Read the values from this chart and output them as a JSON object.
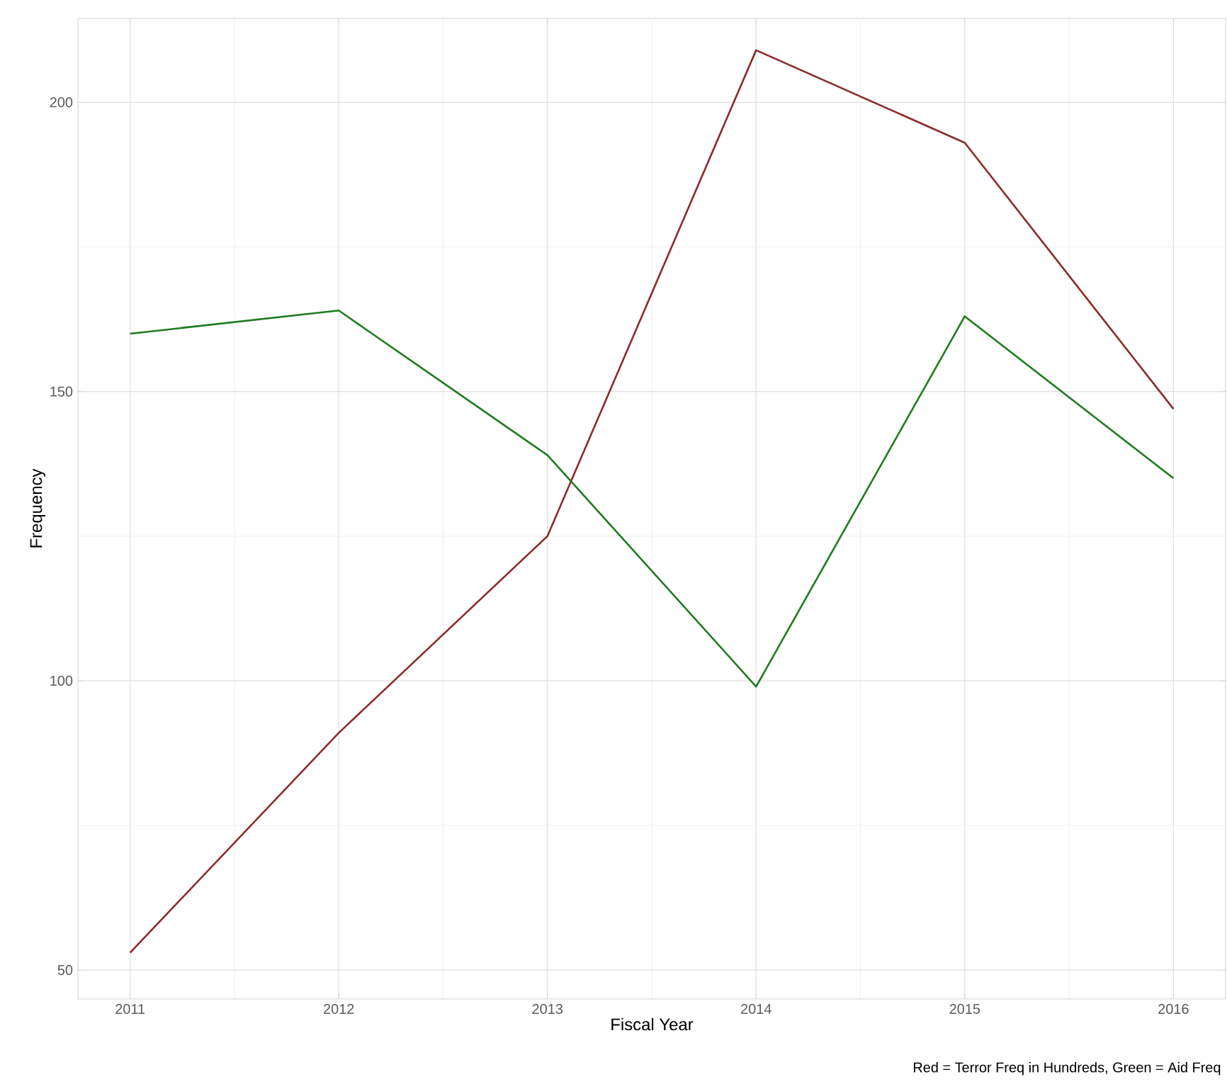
{
  "chart_data": {
    "type": "line",
    "xlabel": "Fiscal Year",
    "ylabel": "Frequency",
    "annotations": [
      "Red = Terror Freq in Hundreds, Green = Aid Freq"
    ],
    "x": [
      2011,
      2012,
      2013,
      2014,
      2015,
      2016
    ],
    "series": [
      {
        "color": "#8b2a2a",
        "values": [
          53,
          91,
          125,
          209,
          193,
          147
        ]
      },
      {
        "color": "#1f7a1f",
        "values": [
          160,
          164,
          139,
          99,
          163,
          135
        ]
      }
    ],
    "xlim": [
      2010.75,
      2016.25
    ],
    "ylim": [
      45,
      214.5
    ],
    "xticks": [
      2011,
      2012,
      2013,
      2014,
      2015,
      2016
    ],
    "yticks": [
      50,
      100,
      150,
      200
    ],
    "grid": true,
    "marker": "none",
    "line_style": "solid"
  }
}
